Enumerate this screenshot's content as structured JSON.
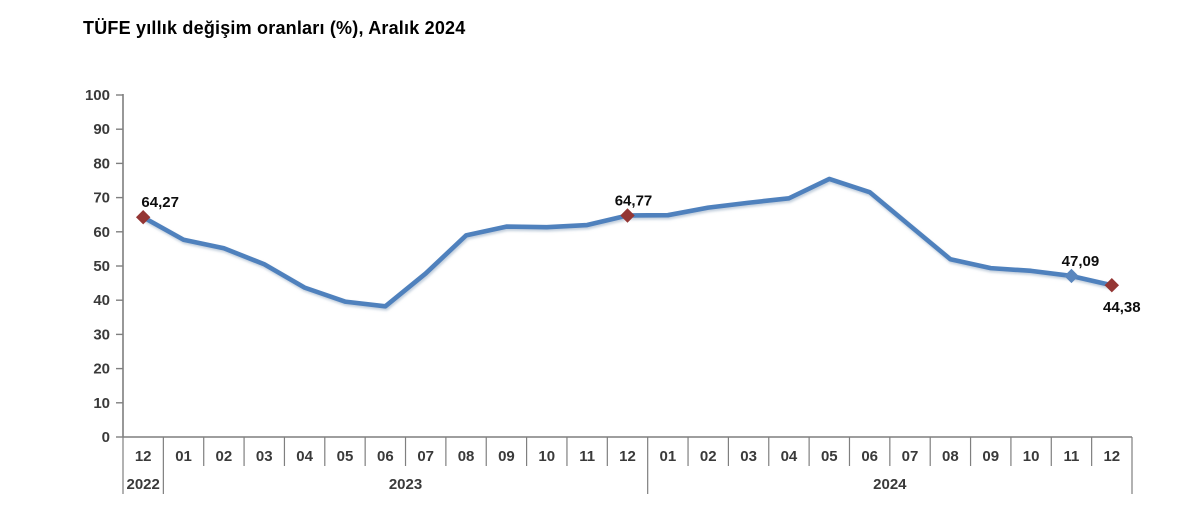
{
  "title": "TÜFE yıllık değişim oranları (%), Aralık 2024",
  "chart_data": {
    "type": "line",
    "title": "TÜFE yıllık değişim oranları (%), Aralık 2024",
    "x_months": [
      "12",
      "01",
      "02",
      "03",
      "04",
      "05",
      "06",
      "07",
      "08",
      "09",
      "10",
      "11",
      "12",
      "01",
      "02",
      "03",
      "04",
      "05",
      "06",
      "07",
      "08",
      "09",
      "10",
      "11",
      "12"
    ],
    "year_groups": [
      {
        "label": "2022",
        "start": 0,
        "span": 1
      },
      {
        "label": "2023",
        "start": 1,
        "span": 12
      },
      {
        "label": "2024",
        "start": 13,
        "span": 12
      }
    ],
    "values": [
      64.27,
      57.68,
      55.18,
      50.51,
      43.68,
      39.59,
      38.21,
      47.83,
      58.94,
      61.53,
      61.36,
      61.98,
      64.77,
      64.86,
      67.07,
      68.5,
      69.8,
      75.45,
      71.6,
      61.78,
      51.97,
      49.38,
      48.58,
      47.09,
      44.38
    ],
    "ylim": [
      0,
      100
    ],
    "y_tick_step": 10,
    "y_tick_labels": [
      "0",
      "10",
      "20",
      "30",
      "40",
      "50",
      "60",
      "70",
      "80",
      "90",
      "100"
    ],
    "labeled_points": [
      {
        "index": 0,
        "label": "64,27",
        "position": "above",
        "marker_color": "#943634",
        "dx": 17
      },
      {
        "index": 12,
        "label": "64,77",
        "position": "above",
        "marker_color": "#943634",
        "dx": 6
      },
      {
        "index": 23,
        "label": "47,09",
        "position": "above",
        "marker_color": "#5b87be",
        "dx": 9
      },
      {
        "index": 24,
        "label": "44,38",
        "position": "below",
        "marker_color": "#943634",
        "dx": 10
      }
    ],
    "line_color": "#4F81BD",
    "axis_color": "#7f7f7f",
    "tick_text_color": "#3a3a3a",
    "label_text_color": "#0d0d0d",
    "legend": "none",
    "grid": "off"
  }
}
